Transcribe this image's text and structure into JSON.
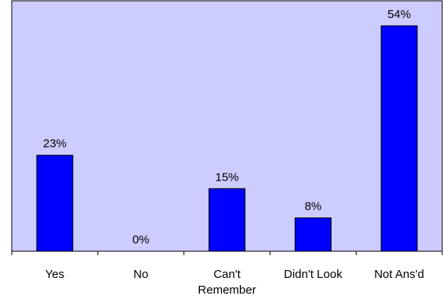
{
  "chart_data": {
    "type": "bar",
    "categories": [
      "Yes",
      "No",
      "Can't Remember",
      "Didn't Look",
      "Not Ans'd"
    ],
    "category_lines": [
      [
        "Yes"
      ],
      [
        "No"
      ],
      [
        "Can't",
        "Remember"
      ],
      [
        "Didn't Look"
      ],
      [
        "Not Ans'd"
      ]
    ],
    "values": [
      23,
      0,
      15,
      8,
      54
    ],
    "value_labels": [
      "23%",
      "0%",
      "15%",
      "8%",
      "54%"
    ],
    "unit": "%",
    "ylim": [
      0,
      60
    ],
    "title": "",
    "xlabel": "",
    "ylabel": "",
    "grid": false,
    "legend": "none",
    "colors": {
      "plot_background": "#ccccff",
      "bar_fill": "#0000ff",
      "bar_stroke": "#000000",
      "axis": "#000000"
    }
  }
}
